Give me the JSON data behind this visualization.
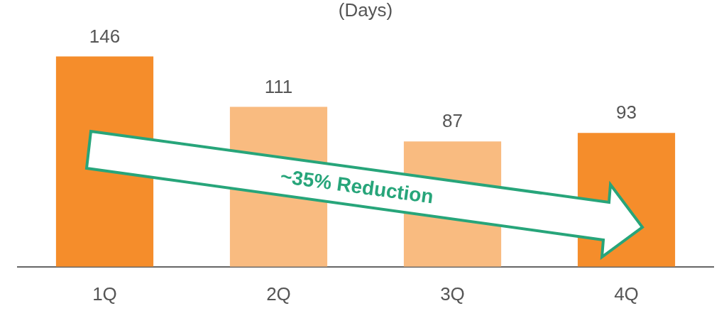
{
  "chart_data": {
    "type": "bar",
    "title": "(Days)",
    "categories": [
      "1Q",
      "2Q",
      "3Q",
      "4Q"
    ],
    "values": [
      146,
      111,
      87,
      93
    ],
    "colors": [
      "#f58d2b",
      "#f9bb80",
      "#f9bb80",
      "#f58d2b"
    ],
    "data_labels": true,
    "grid": false,
    "legend": false,
    "tick_labels": "x",
    "annotations": [
      "~35% Reduction"
    ]
  }
}
